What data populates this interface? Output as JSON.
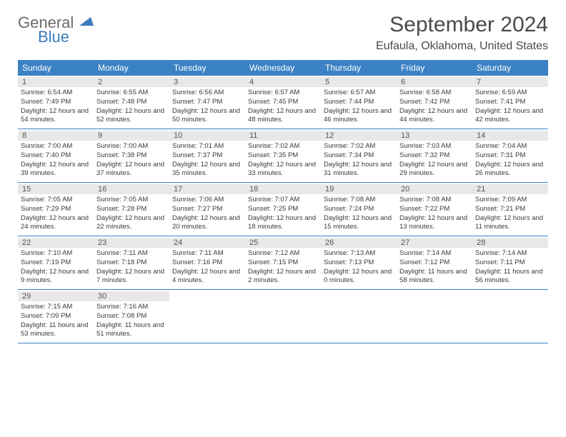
{
  "logo": {
    "general": "General",
    "blue": "Blue"
  },
  "title": "September 2024",
  "location": "Eufaula, Oklahoma, United States",
  "colors": {
    "header_bg": "#3b82c4",
    "header_text": "#ffffff",
    "daynum_bg": "#e8e8e8",
    "text": "#3a3a3a",
    "logo_gray": "#6b6b6b",
    "logo_blue": "#3b7bbf"
  },
  "day_names": [
    "Sunday",
    "Monday",
    "Tuesday",
    "Wednesday",
    "Thursday",
    "Friday",
    "Saturday"
  ],
  "days": [
    {
      "n": 1,
      "sunrise": "6:54 AM",
      "sunset": "7:49 PM",
      "daylight": "12 hours and 54 minutes."
    },
    {
      "n": 2,
      "sunrise": "6:55 AM",
      "sunset": "7:48 PM",
      "daylight": "12 hours and 52 minutes."
    },
    {
      "n": 3,
      "sunrise": "6:56 AM",
      "sunset": "7:47 PM",
      "daylight": "12 hours and 50 minutes."
    },
    {
      "n": 4,
      "sunrise": "6:57 AM",
      "sunset": "7:45 PM",
      "daylight": "12 hours and 48 minutes."
    },
    {
      "n": 5,
      "sunrise": "6:57 AM",
      "sunset": "7:44 PM",
      "daylight": "12 hours and 46 minutes."
    },
    {
      "n": 6,
      "sunrise": "6:58 AM",
      "sunset": "7:42 PM",
      "daylight": "12 hours and 44 minutes."
    },
    {
      "n": 7,
      "sunrise": "6:59 AM",
      "sunset": "7:41 PM",
      "daylight": "12 hours and 42 minutes."
    },
    {
      "n": 8,
      "sunrise": "7:00 AM",
      "sunset": "7:40 PM",
      "daylight": "12 hours and 39 minutes."
    },
    {
      "n": 9,
      "sunrise": "7:00 AM",
      "sunset": "7:38 PM",
      "daylight": "12 hours and 37 minutes."
    },
    {
      "n": 10,
      "sunrise": "7:01 AM",
      "sunset": "7:37 PM",
      "daylight": "12 hours and 35 minutes."
    },
    {
      "n": 11,
      "sunrise": "7:02 AM",
      "sunset": "7:35 PM",
      "daylight": "12 hours and 33 minutes."
    },
    {
      "n": 12,
      "sunrise": "7:02 AM",
      "sunset": "7:34 PM",
      "daylight": "12 hours and 31 minutes."
    },
    {
      "n": 13,
      "sunrise": "7:03 AM",
      "sunset": "7:32 PM",
      "daylight": "12 hours and 29 minutes."
    },
    {
      "n": 14,
      "sunrise": "7:04 AM",
      "sunset": "7:31 PM",
      "daylight": "12 hours and 26 minutes."
    },
    {
      "n": 15,
      "sunrise": "7:05 AM",
      "sunset": "7:29 PM",
      "daylight": "12 hours and 24 minutes."
    },
    {
      "n": 16,
      "sunrise": "7:05 AM",
      "sunset": "7:28 PM",
      "daylight": "12 hours and 22 minutes."
    },
    {
      "n": 17,
      "sunrise": "7:06 AM",
      "sunset": "7:27 PM",
      "daylight": "12 hours and 20 minutes."
    },
    {
      "n": 18,
      "sunrise": "7:07 AM",
      "sunset": "7:25 PM",
      "daylight": "12 hours and 18 minutes."
    },
    {
      "n": 19,
      "sunrise": "7:08 AM",
      "sunset": "7:24 PM",
      "daylight": "12 hours and 15 minutes."
    },
    {
      "n": 20,
      "sunrise": "7:08 AM",
      "sunset": "7:22 PM",
      "daylight": "12 hours and 13 minutes."
    },
    {
      "n": 21,
      "sunrise": "7:09 AM",
      "sunset": "7:21 PM",
      "daylight": "12 hours and 11 minutes."
    },
    {
      "n": 22,
      "sunrise": "7:10 AM",
      "sunset": "7:19 PM",
      "daylight": "12 hours and 9 minutes."
    },
    {
      "n": 23,
      "sunrise": "7:11 AM",
      "sunset": "7:18 PM",
      "daylight": "12 hours and 7 minutes."
    },
    {
      "n": 24,
      "sunrise": "7:11 AM",
      "sunset": "7:16 PM",
      "daylight": "12 hours and 4 minutes."
    },
    {
      "n": 25,
      "sunrise": "7:12 AM",
      "sunset": "7:15 PM",
      "daylight": "12 hours and 2 minutes."
    },
    {
      "n": 26,
      "sunrise": "7:13 AM",
      "sunset": "7:13 PM",
      "daylight": "12 hours and 0 minutes."
    },
    {
      "n": 27,
      "sunrise": "7:14 AM",
      "sunset": "7:12 PM",
      "daylight": "11 hours and 58 minutes."
    },
    {
      "n": 28,
      "sunrise": "7:14 AM",
      "sunset": "7:11 PM",
      "daylight": "11 hours and 56 minutes."
    },
    {
      "n": 29,
      "sunrise": "7:15 AM",
      "sunset": "7:09 PM",
      "daylight": "11 hours and 53 minutes."
    },
    {
      "n": 30,
      "sunrise": "7:16 AM",
      "sunset": "7:08 PM",
      "daylight": "11 hours and 51 minutes."
    }
  ],
  "labels": {
    "sunrise": "Sunrise:",
    "sunset": "Sunset:",
    "daylight": "Daylight:"
  }
}
